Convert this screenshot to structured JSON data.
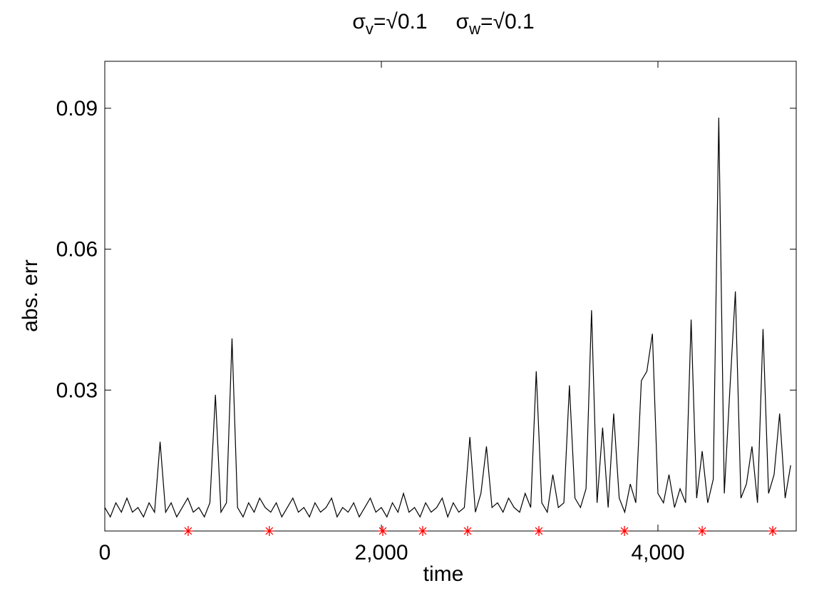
{
  "chart_data": {
    "type": "line",
    "title": [
      {
        "symbol": "σ",
        "subscript": "v",
        "text": "=√0.1"
      },
      {
        "symbol": "σ",
        "subscript": "w",
        "text": "=√0.1"
      }
    ],
    "x_label": "time",
    "y_label": "abs. err",
    "xlim": [
      0,
      5000
    ],
    "ylim": [
      0,
      0.1
    ],
    "xticks": [
      0,
      {
        "value": 2000,
        "label": "2,000"
      },
      {
        "value": 4000,
        "label": "4,000"
      }
    ],
    "yticks": [
      0.03,
      0.06,
      0.09
    ],
    "grid": false,
    "series": [
      {
        "color": "#000000",
        "x": [
          0,
          40,
          80,
          120,
          160,
          200,
          240,
          280,
          320,
          360,
          400,
          440,
          480,
          520,
          560,
          600,
          640,
          680,
          720,
          760,
          800,
          840,
          880,
          920,
          960,
          1000,
          1040,
          1080,
          1120,
          1160,
          1200,
          1240,
          1280,
          1320,
          1360,
          1400,
          1440,
          1480,
          1520,
          1560,
          1600,
          1640,
          1680,
          1720,
          1760,
          1800,
          1840,
          1880,
          1920,
          1960,
          2000,
          2040,
          2080,
          2120,
          2160,
          2200,
          2240,
          2280,
          2320,
          2360,
          2400,
          2440,
          2480,
          2520,
          2560,
          2600,
          2640,
          2680,
          2720,
          2760,
          2800,
          2840,
          2880,
          2920,
          2960,
          3000,
          3040,
          3080,
          3120,
          3160,
          3200,
          3240,
          3280,
          3320,
          3360,
          3400,
          3440,
          3480,
          3520,
          3560,
          3600,
          3640,
          3680,
          3720,
          3760,
          3800,
          3840,
          3880,
          3920,
          3960,
          4000,
          4040,
          4080,
          4120,
          4160,
          4200,
          4240,
          4280,
          4320,
          4360,
          4400,
          4440,
          4480,
          4520,
          4560,
          4600,
          4640,
          4680,
          4720,
          4760,
          4800,
          4840,
          4880,
          4920,
          4960
        ],
        "values": [
          0.005,
          0.003,
          0.006,
          0.004,
          0.007,
          0.004,
          0.005,
          0.003,
          0.006,
          0.004,
          0.019,
          0.004,
          0.006,
          0.003,
          0.005,
          0.007,
          0.004,
          0.005,
          0.003,
          0.006,
          0.029,
          0.004,
          0.006,
          0.041,
          0.005,
          0.003,
          0.006,
          0.004,
          0.007,
          0.005,
          0.004,
          0.006,
          0.003,
          0.005,
          0.007,
          0.004,
          0.005,
          0.003,
          0.006,
          0.004,
          0.005,
          0.007,
          0.003,
          0.005,
          0.004,
          0.006,
          0.003,
          0.005,
          0.007,
          0.004,
          0.005,
          0.003,
          0.006,
          0.004,
          0.008,
          0.004,
          0.005,
          0.003,
          0.006,
          0.004,
          0.005,
          0.007,
          0.003,
          0.006,
          0.004,
          0.005,
          0.02,
          0.004,
          0.008,
          0.018,
          0.005,
          0.006,
          0.004,
          0.007,
          0.005,
          0.004,
          0.008,
          0.005,
          0.034,
          0.006,
          0.004,
          0.012,
          0.005,
          0.006,
          0.031,
          0.007,
          0.005,
          0.009,
          0.047,
          0.006,
          0.022,
          0.005,
          0.025,
          0.007,
          0.004,
          0.01,
          0.006,
          0.032,
          0.034,
          0.042,
          0.008,
          0.006,
          0.012,
          0.005,
          0.009,
          0.006,
          0.045,
          0.007,
          0.017,
          0.006,
          0.011,
          0.088,
          0.008,
          0.03,
          0.051,
          0.007,
          0.01,
          0.018,
          0.006,
          0.043,
          0.008,
          0.012,
          0.025,
          0.007,
          0.014
        ]
      }
    ],
    "markers": {
      "color": "#ff0000",
      "x": [
        603,
        1190,
        2010,
        2299,
        2624,
        3139,
        3758,
        4320,
        4830
      ],
      "values": [
        0,
        0,
        0,
        0,
        0,
        0,
        0,
        0,
        0
      ]
    }
  }
}
